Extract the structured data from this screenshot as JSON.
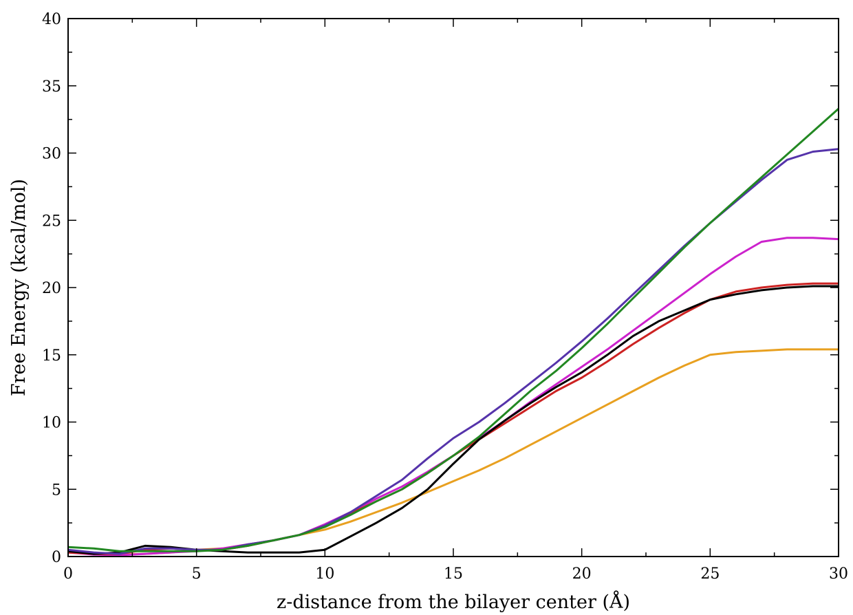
{
  "chart_data": {
    "type": "line",
    "title": "",
    "xlabel": "z-distance from the bilayer center (Å)",
    "ylabel": "Free Energy (kcal/mol)",
    "xlim": [
      0,
      30
    ],
    "ylim": [
      0,
      40
    ],
    "xticks": [
      0,
      5,
      10,
      15,
      20,
      25,
      30
    ],
    "yticks": [
      0,
      5,
      10,
      15,
      20,
      25,
      30,
      35,
      40
    ],
    "grid": false,
    "legend": "none",
    "series": [
      {
        "color": "#e8a020",
        "x": [
          0,
          1,
          2,
          3,
          4,
          5,
          6,
          7,
          8,
          9,
          10,
          11,
          12,
          13,
          14,
          15,
          16,
          17,
          18,
          19,
          20,
          21,
          22,
          23,
          24,
          25,
          26,
          27,
          28,
          29,
          30
        ],
        "y": [
          0.4,
          0.2,
          0.15,
          0.2,
          0.3,
          0.5,
          0.6,
          0.9,
          1.2,
          1.6,
          2.0,
          2.6,
          3.3,
          4.0,
          4.8,
          5.6,
          6.4,
          7.3,
          8.3,
          9.3,
          10.3,
          11.3,
          12.3,
          13.3,
          14.2,
          15.0,
          15.2,
          15.3,
          15.4,
          15.4,
          15.4
        ]
      },
      {
        "color": "#cc22cc",
        "x": [
          0,
          1,
          2,
          3,
          4,
          5,
          6,
          7,
          8,
          9,
          10,
          11,
          12,
          13,
          14,
          15,
          16,
          17,
          18,
          19,
          20,
          21,
          22,
          23,
          24,
          25,
          26,
          27,
          28,
          29,
          30
        ],
        "y": [
          0.3,
          0.15,
          0.1,
          0.2,
          0.3,
          0.4,
          0.6,
          0.9,
          1.2,
          1.6,
          2.4,
          3.3,
          4.3,
          5.2,
          6.3,
          7.5,
          8.8,
          10.1,
          11.5,
          12.8,
          14.1,
          15.4,
          16.8,
          18.2,
          19.6,
          21.0,
          22.3,
          23.4,
          23.7,
          23.7,
          23.6
        ]
      },
      {
        "color": "#cc2222",
        "x": [
          0,
          1,
          2,
          3,
          4,
          5,
          6,
          7,
          8,
          9,
          10,
          11,
          12,
          13,
          14,
          15,
          16,
          17,
          18,
          19,
          20,
          21,
          22,
          23,
          24,
          25,
          26,
          27,
          28,
          29,
          30
        ],
        "y": [
          0.3,
          0.2,
          0.2,
          0.5,
          0.6,
          0.5,
          0.5,
          0.8,
          1.2,
          1.6,
          2.3,
          3.2,
          4.1,
          5.0,
          6.2,
          7.5,
          8.7,
          9.9,
          11.1,
          12.3,
          13.3,
          14.5,
          15.8,
          17.0,
          18.1,
          19.1,
          19.7,
          20.0,
          20.2,
          20.3,
          20.3
        ]
      },
      {
        "color": "#000000",
        "x": [
          0,
          1,
          2,
          3,
          4,
          5,
          6,
          7,
          8,
          9,
          10,
          11,
          12,
          13,
          14,
          15,
          16,
          17,
          18,
          19,
          20,
          21,
          22,
          23,
          24,
          25,
          26,
          27,
          28,
          29,
          30
        ],
        "y": [
          0.4,
          0.2,
          0.3,
          0.8,
          0.7,
          0.5,
          0.4,
          0.3,
          0.3,
          0.3,
          0.5,
          1.5,
          2.5,
          3.6,
          5.0,
          6.9,
          8.7,
          10.1,
          11.4,
          12.6,
          13.7,
          15.0,
          16.4,
          17.5,
          18.3,
          19.1,
          19.5,
          19.8,
          20.0,
          20.1,
          20.1
        ]
      },
      {
        "color": "#5533aa",
        "x": [
          0,
          1,
          2,
          3,
          4,
          5,
          6,
          7,
          8,
          9,
          10,
          11,
          12,
          13,
          14,
          15,
          16,
          17,
          18,
          19,
          20,
          21,
          22,
          23,
          24,
          25,
          26,
          27,
          28,
          29,
          30
        ],
        "y": [
          0.5,
          0.3,
          0.2,
          0.6,
          0.6,
          0.5,
          0.5,
          0.9,
          1.2,
          1.6,
          2.3,
          3.3,
          4.5,
          5.7,
          7.3,
          8.8,
          10.0,
          11.4,
          12.9,
          14.4,
          16.0,
          17.7,
          19.5,
          21.3,
          23.1,
          24.8,
          26.4,
          28.0,
          29.5,
          30.1,
          30.3
        ]
      },
      {
        "color": "#228822",
        "x": [
          0,
          1,
          2,
          3,
          4,
          5,
          6,
          7,
          8,
          9,
          10,
          11,
          12,
          13,
          14,
          15,
          16,
          17,
          18,
          19,
          20,
          21,
          22,
          23,
          24,
          25,
          26,
          27,
          28,
          29,
          30
        ],
        "y": [
          0.7,
          0.6,
          0.4,
          0.4,
          0.4,
          0.4,
          0.5,
          0.8,
          1.2,
          1.6,
          2.2,
          3.1,
          4.1,
          5.0,
          6.2,
          7.5,
          8.9,
          10.6,
          12.3,
          13.8,
          15.5,
          17.3,
          19.2,
          21.1,
          23.0,
          24.8,
          26.5,
          28.2,
          29.9,
          31.6,
          33.3
        ]
      }
    ]
  }
}
